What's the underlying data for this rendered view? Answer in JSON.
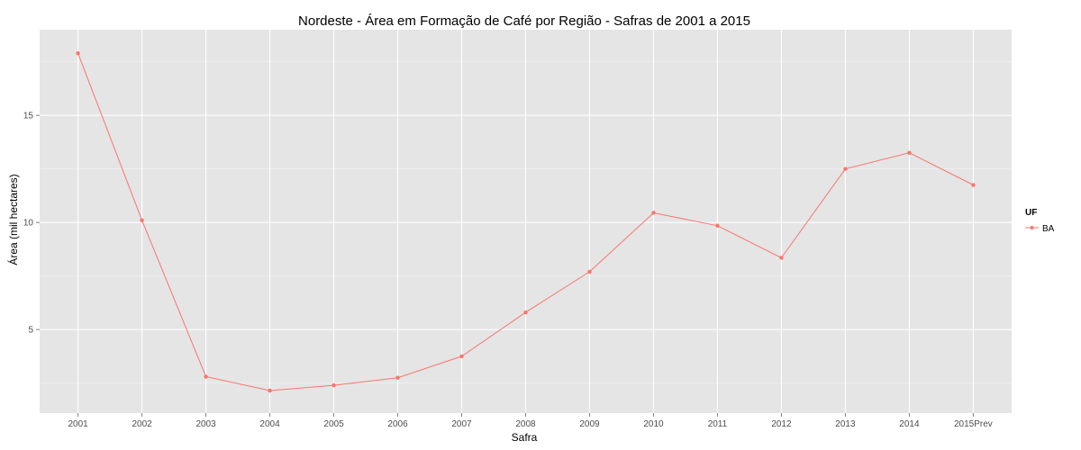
{
  "chart_data": {
    "type": "line",
    "title": "Nordeste  - Área em Formação de Café por Região - Safras de 2001 a 2015",
    "xlabel": "Safra",
    "ylabel": "Área (mil hectares)",
    "categories": [
      "2001",
      "2002",
      "2003",
      "2004",
      "2005",
      "2006",
      "2007",
      "2008",
      "2009",
      "2010",
      "2011",
      "2012",
      "2013",
      "2014",
      "2015Prev"
    ],
    "series": [
      {
        "name": "BA",
        "color": "#f8766d",
        "values": [
          17.9,
          10.1,
          2.8,
          2.15,
          2.4,
          2.75,
          3.75,
          5.8,
          7.7,
          10.45,
          9.85,
          8.35,
          12.5,
          13.25,
          11.75
        ]
      }
    ],
    "ylim": [
      1.1,
      19.0
    ],
    "yticks": [
      5,
      10,
      15
    ],
    "ytick_labels": [
      "5",
      "10",
      "15"
    ],
    "grid": true,
    "panel_background": "#e5e5e5",
    "legend": {
      "title": "UF",
      "position": "right"
    }
  }
}
